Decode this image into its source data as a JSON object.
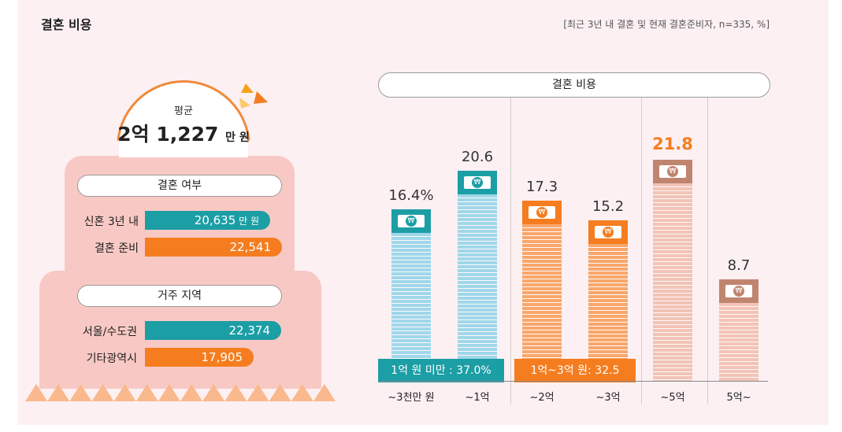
{
  "title": "결혼 비용",
  "subtitle": "[최근 3년 내 결혼 및 현재 결혼준비자, n=335, %]",
  "average": {
    "label": "평균",
    "value": "2억 1,227",
    "unit": "만 원"
  },
  "left_panel": {
    "sections": [
      {
        "title": "결혼 여부",
        "rows": [
          {
            "label": "신혼 3년 내",
            "value": "20,635",
            "unit": "만 원",
            "num": 20635,
            "color": "#1c9ea5"
          },
          {
            "label": "결혼 준비",
            "value": "22,541",
            "unit": "",
            "num": 22541,
            "color": "#f57d1f"
          }
        ]
      },
      {
        "title": "거주 지역",
        "rows": [
          {
            "label": "서울/수도권",
            "value": "22,374",
            "unit": "",
            "num": 22374,
            "color": "#1c9ea5"
          },
          {
            "label": "기타광역시",
            "value": "17,905",
            "unit": "",
            "num": 17905,
            "color": "#f57d1f"
          }
        ]
      }
    ]
  },
  "chart_data": {
    "type": "bar",
    "title": "결혼 비용",
    "categories": [
      "~3천만 원",
      "~1억",
      "~2억",
      "~3억",
      "~5억",
      "5억~"
    ],
    "values": [
      16.4,
      20.6,
      17.3,
      15.2,
      21.8,
      8.7
    ],
    "value_labels": [
      "16.4%",
      "20.6",
      "17.3",
      "15.2",
      "21.8",
      "8.7"
    ],
    "highlight_index": 4,
    "colors": {
      "teal": "#9fd7ea",
      "orange": "#f9a66a",
      "pink": "#f2c3b6",
      "highlight_text": "#f57d1f"
    },
    "groups": [
      {
        "label": "1억 원 미만 : 37.0%",
        "color": "#1c9ea5"
      },
      {
        "label": "1억~3억 원: 32.5",
        "color": "#f57d1f"
      }
    ]
  }
}
